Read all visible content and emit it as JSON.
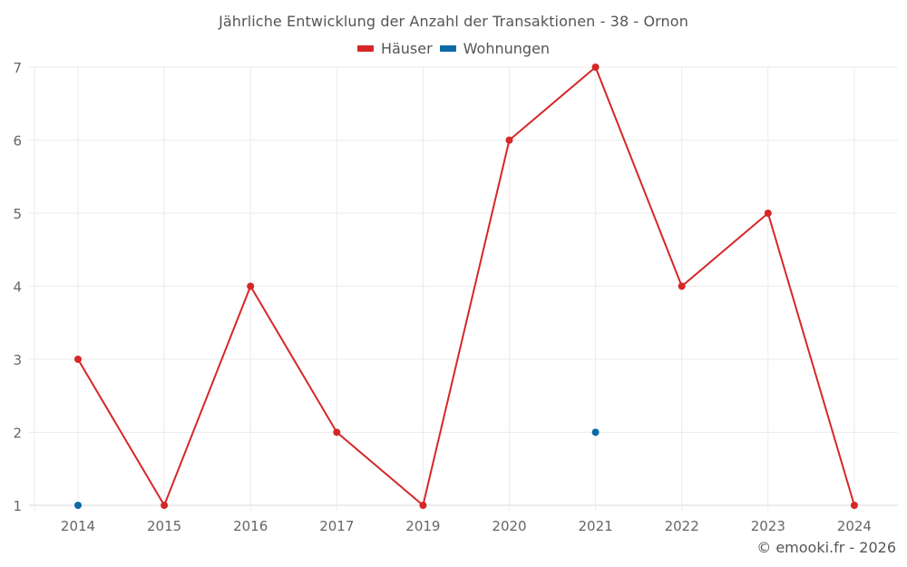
{
  "title": "Jährliche Entwicklung der Anzahl der Transaktionen - 38 - Ornon",
  "legend": [
    {
      "label": "Häuser",
      "color": "#d62728",
      "icon": "legend-swatch"
    },
    {
      "label": "Wohnungen",
      "color": "#0b6aa6",
      "icon": "legend-swatch"
    }
  ],
  "credit": "© emooki.fr - 2026",
  "chart_data": {
    "type": "line",
    "title": "Jährliche Entwicklung der Anzahl der Transaktionen - 38 - Ornon",
    "xlabel": "",
    "ylabel": "",
    "categories": [
      "2014",
      "2015",
      "2016",
      "2017",
      "2019",
      "2020",
      "2021",
      "2022",
      "2023",
      "2024"
    ],
    "series": [
      {
        "name": "Häuser",
        "color": "#d62728",
        "style": "line+markers",
        "values": [
          3,
          1,
          4,
          2,
          1,
          6,
          7,
          4,
          5,
          1
        ]
      },
      {
        "name": "Wohnungen",
        "color": "#0b6aa6",
        "style": "markers",
        "values": [
          1,
          null,
          null,
          null,
          null,
          null,
          2,
          null,
          null,
          null
        ]
      }
    ],
    "ylim": [
      1,
      7
    ],
    "yticks": [
      1,
      2,
      3,
      4,
      5,
      6,
      7
    ],
    "grid": true,
    "legend_position": "top-center"
  }
}
